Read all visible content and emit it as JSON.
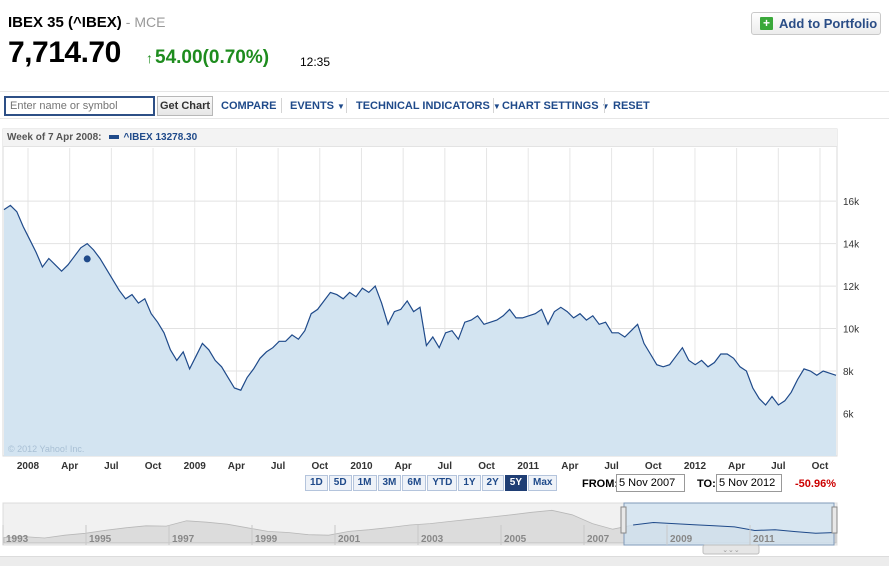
{
  "header": {
    "name": "IBEX 35 (^IBEX)",
    "exchange": "- MCE",
    "price": "7,714.70",
    "change": "54.00(0.70%)",
    "time": "12:35",
    "add_portfolio": "Add to Portfolio",
    "change_color": "#1e8c1e"
  },
  "toolbar": {
    "search_placeholder": "Enter name or symbol",
    "get_chart": "Get Chart",
    "compare": "COMPARE",
    "events": "EVENTS",
    "technical_indicators": "TECHNICAL INDICATORS",
    "chart_settings": "CHART SETTINGS",
    "reset": "RESET"
  },
  "legend": {
    "week": "Week of 7 Apr 2008:",
    "series": "^IBEX 13278.30"
  },
  "watermark": "© 2012 Yahoo! Inc.",
  "chart_data": {
    "type": "area",
    "x_labels": [
      "2008",
      "Apr",
      "Jul",
      "Oct",
      "2009",
      "Apr",
      "Jul",
      "Oct",
      "2010",
      "Apr",
      "Jul",
      "Oct",
      "2011",
      "Apr",
      "Jul",
      "Oct",
      "2012",
      "Apr",
      "Jul",
      "Oct"
    ],
    "y_ticks": [
      "16k",
      "14k",
      "12k",
      "10k",
      "8k",
      "6k"
    ],
    "ylim": [
      4000,
      18500
    ],
    "x_range": [
      "Nov 2007",
      "Nov 2012"
    ],
    "grid": true,
    "series_color": "#1f4a8a",
    "fill_color": "#d3e4f1",
    "values": [
      15600,
      15800,
      15500,
      14800,
      14200,
      13600,
      12900,
      13300,
      13000,
      12700,
      13000,
      13400,
      13800,
      14000,
      13700,
      13300,
      12800,
      12300,
      11800,
      11400,
      11600,
      11200,
      11400,
      10700,
      10300,
      9800,
      9000,
      8500,
      8900,
      8100,
      8700,
      9300,
      9000,
      8500,
      8200,
      7700,
      7200,
      7100,
      7700,
      8100,
      8600,
      8900,
      9100,
      9400,
      9400,
      9700,
      9500,
      9900,
      10700,
      10900,
      11300,
      11700,
      11600,
      11400,
      11700,
      11500,
      11900,
      11700,
      12000,
      11200,
      10200,
      10800,
      10900,
      11300,
      10800,
      11000,
      9200,
      9600,
      9100,
      9800,
      9900,
      9500,
      10300,
      10400,
      10600,
      10200,
      10300,
      10400,
      10600,
      10900,
      10500,
      10500,
      10600,
      10700,
      10900,
      10200,
      10800,
      11000,
      10800,
      10500,
      10700,
      10400,
      10600,
      10200,
      10300,
      9800,
      9800,
      9600,
      9900,
      10200,
      9300,
      8800,
      8300,
      8200,
      8300,
      8700,
      9100,
      8500,
      8300,
      8500,
      8200,
      8400,
      8800,
      8800,
      8600,
      8200,
      8000,
      7200,
      6700,
      6400,
      6800,
      6400,
      6600,
      7000,
      7600,
      8100,
      8000,
      7800,
      8000,
      7900,
      7800
    ]
  },
  "navigator": {
    "years": [
      "1993",
      "1995",
      "1997",
      "1999",
      "2001",
      "2003",
      "2005",
      "2007",
      "2009",
      "2011"
    ]
  },
  "ranges": [
    "1D",
    "5D",
    "1M",
    "3M",
    "6M",
    "YTD",
    "1Y",
    "2Y",
    "5Y",
    "Max"
  ],
  "active_range": "5Y",
  "dates": {
    "from_label": "FROM:",
    "from": "5 Nov 2007",
    "to_label": "TO:",
    "to": "5 Nov 2012",
    "pct": "-50.96%"
  }
}
